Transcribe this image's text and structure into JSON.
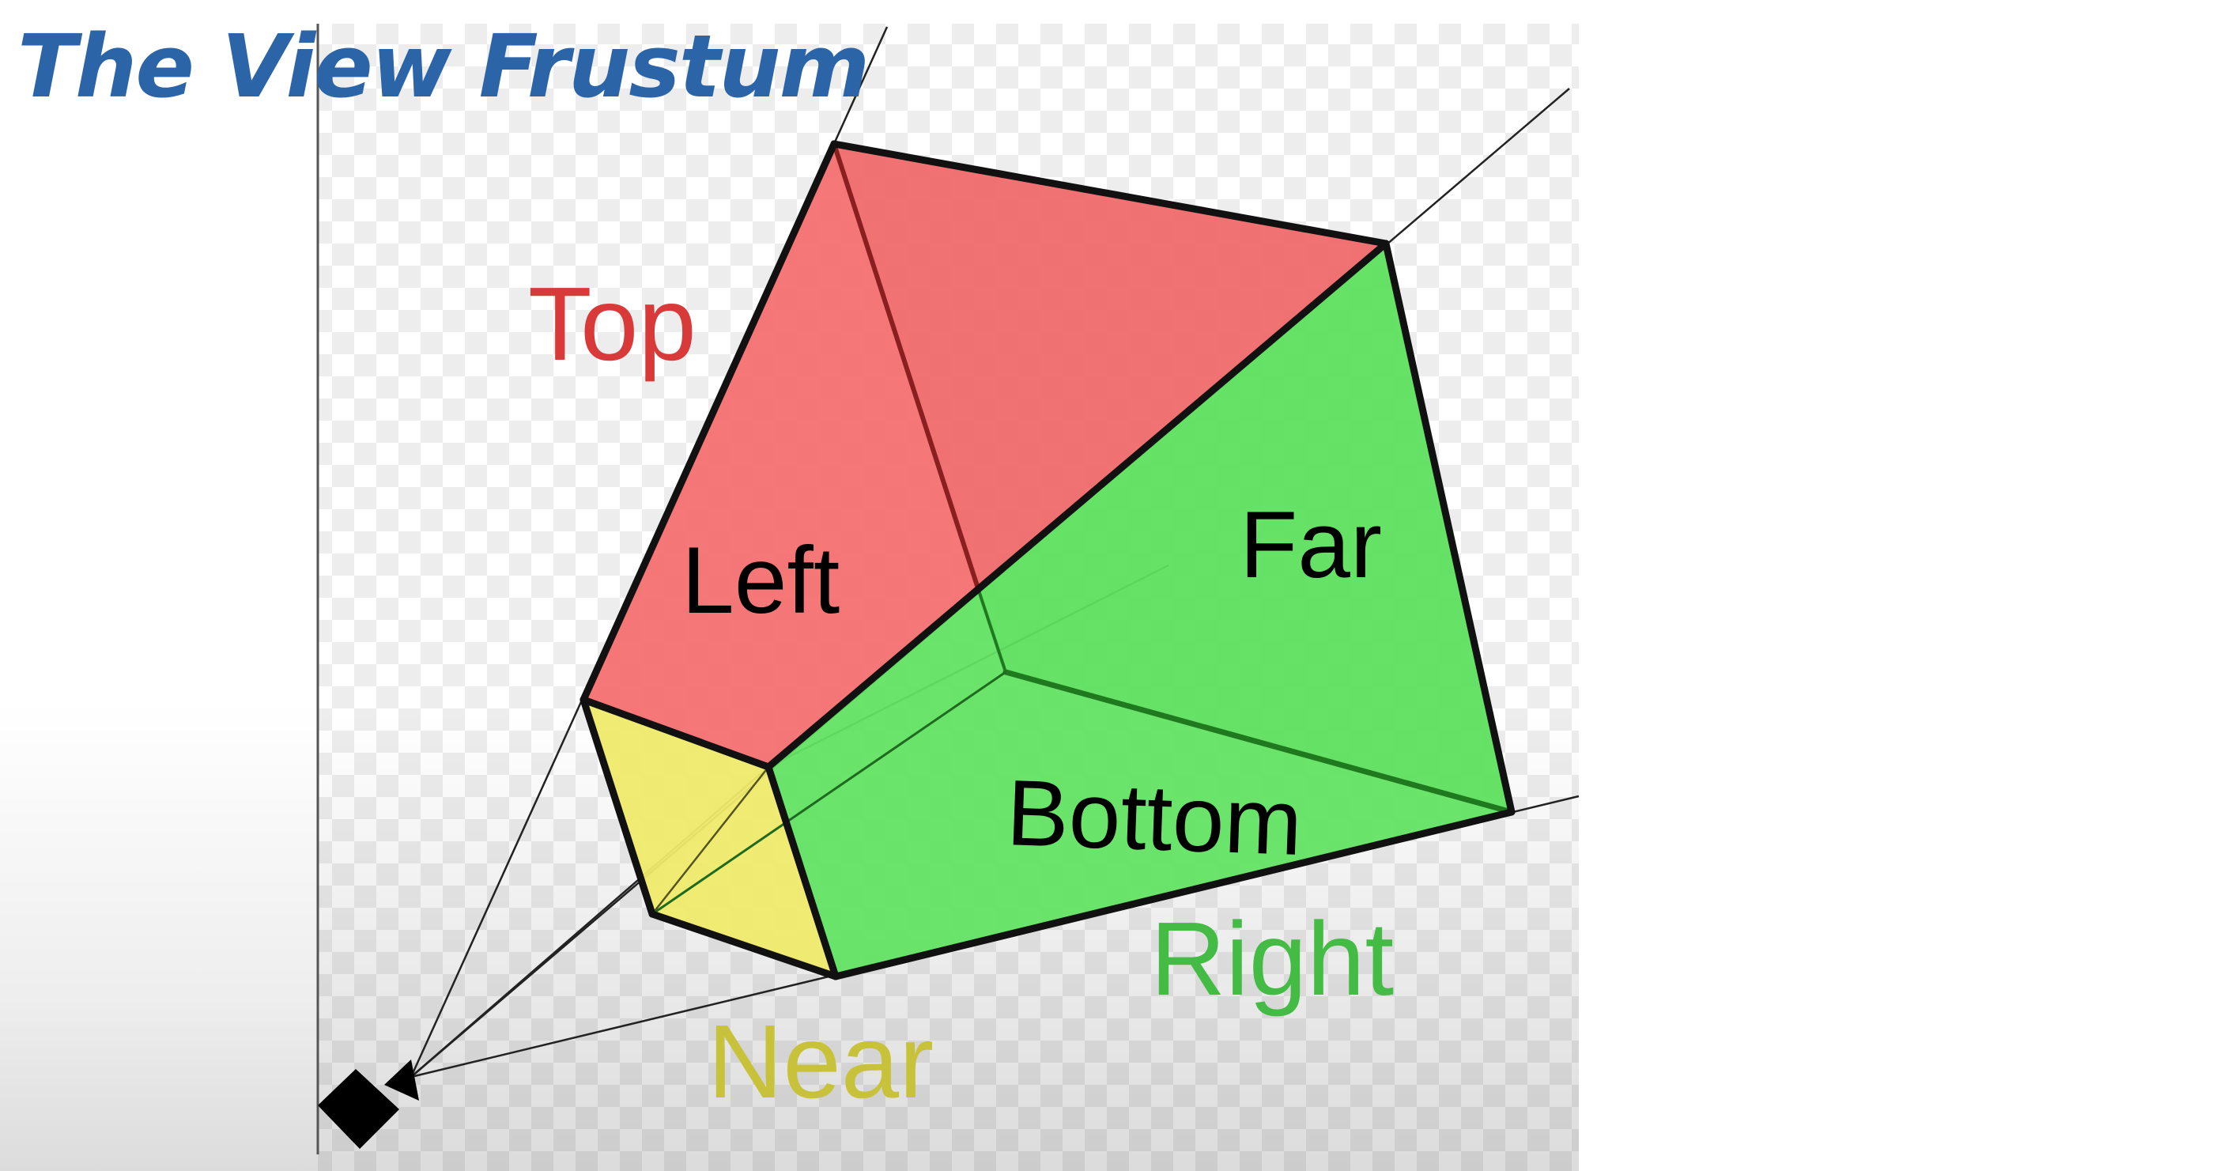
{
  "title": "The View Frustum",
  "labels": {
    "top": "Top",
    "left": "Left",
    "far": "Far",
    "bottom": "Bottom",
    "right": "Right",
    "near": "Near"
  },
  "icons": {
    "camera": "camera-icon"
  },
  "colors": {
    "title": "#2c64a8",
    "top_face": "#f06a6a",
    "left_face": "#f57070",
    "green_face": "#5ee05e",
    "near_face": "#eeea6c",
    "top_label": "#d83a3a",
    "right_label": "#44bb44",
    "near_label": "#c8c23a",
    "edge": "#111111"
  }
}
